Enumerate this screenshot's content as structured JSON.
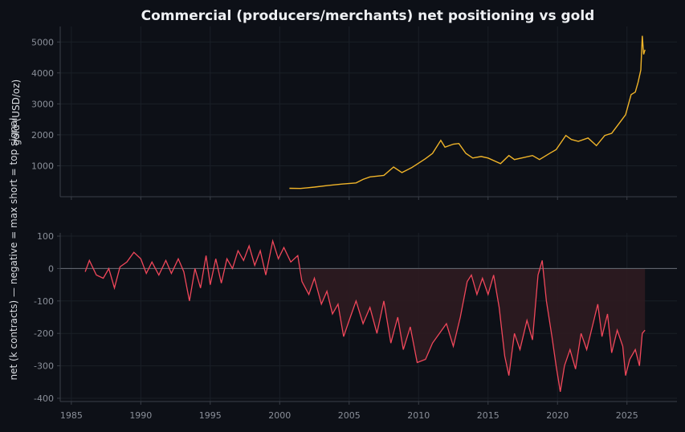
{
  "title": "Commercial (producers/merchants) net positioning vs gold",
  "colors": {
    "background": "#0d1017",
    "gold_line": "#f0b429",
    "net_line": "#f0475a",
    "net_fill": "#2c1a20",
    "zero_line": "#6a6f78",
    "tick_text": "#8a8f99",
    "label_text": "#d8dbe0"
  },
  "chart_data": [
    {
      "type": "line",
      "name": "gold",
      "ylabel": "gold (USD/oz)",
      "xlim": [
        1984.2,
        2028.6
      ],
      "ylim": [
        0,
        5500
      ],
      "yticks": [
        1000,
        2000,
        3000,
        4000,
        5000
      ],
      "grid": true,
      "x_tick_labels_shown": false,
      "series": [
        {
          "color": "#f0b429",
          "points": [
            [
              2000.7,
              272
            ],
            [
              2001.5,
              268
            ],
            [
              2002.5,
              312
            ],
            [
              2003.5,
              365
            ],
            [
              2004.5,
              410
            ],
            [
              2005.5,
              445
            ],
            [
              2006.0,
              560
            ],
            [
              2006.5,
              640
            ],
            [
              2007.5,
              690
            ],
            [
              2008.2,
              960
            ],
            [
              2008.8,
              780
            ],
            [
              2009.5,
              940
            ],
            [
              2010.5,
              1230
            ],
            [
              2011.0,
              1400
            ],
            [
              2011.6,
              1820
            ],
            [
              2011.9,
              1600
            ],
            [
              2012.5,
              1700
            ],
            [
              2012.9,
              1720
            ],
            [
              2013.4,
              1400
            ],
            [
              2013.9,
              1250
            ],
            [
              2014.5,
              1300
            ],
            [
              2015.0,
              1250
            ],
            [
              2015.9,
              1070
            ],
            [
              2016.5,
              1330
            ],
            [
              2016.9,
              1200
            ],
            [
              2017.5,
              1260
            ],
            [
              2018.2,
              1330
            ],
            [
              2018.7,
              1200
            ],
            [
              2019.5,
              1420
            ],
            [
              2019.9,
              1520
            ],
            [
              2020.6,
              1980
            ],
            [
              2021.0,
              1850
            ],
            [
              2021.5,
              1790
            ],
            [
              2022.2,
              1900
            ],
            [
              2022.8,
              1650
            ],
            [
              2023.4,
              1980
            ],
            [
              2023.9,
              2050
            ],
            [
              2024.4,
              2350
            ],
            [
              2024.9,
              2650
            ],
            [
              2025.3,
              3300
            ],
            [
              2025.6,
              3380
            ],
            [
              2025.8,
              3700
            ],
            [
              2026.0,
              4100
            ],
            [
              2026.1,
              5200
            ],
            [
              2026.2,
              4600
            ],
            [
              2026.3,
              4750
            ]
          ]
        }
      ]
    },
    {
      "type": "area",
      "name": "net",
      "ylabel": "net (k contracts) — negative = max short = top signal",
      "xlim": [
        1984.2,
        2028.6
      ],
      "ylim": [
        -410,
        110
      ],
      "yticks": [
        100,
        0,
        -100,
        -200,
        -300,
        -400
      ],
      "xticks": [
        1985,
        1990,
        1995,
        2000,
        2005,
        2010,
        2015,
        2020,
        2025
      ],
      "grid": true,
      "zero_line": true,
      "series": [
        {
          "color": "#f0475a",
          "fill": "#2c1a20",
          "points": [
            [
              1986.0,
              -10
            ],
            [
              1986.3,
              25
            ],
            [
              1986.8,
              -20
            ],
            [
              1987.3,
              -30
            ],
            [
              1987.7,
              0
            ],
            [
              1988.1,
              -60
            ],
            [
              1988.5,
              5
            ],
            [
              1989.0,
              20
            ],
            [
              1989.5,
              50
            ],
            [
              1990.0,
              30
            ],
            [
              1990.4,
              -15
            ],
            [
              1990.8,
              20
            ],
            [
              1991.3,
              -20
            ],
            [
              1991.8,
              25
            ],
            [
              1992.2,
              -15
            ],
            [
              1992.7,
              30
            ],
            [
              1993.1,
              -10
            ],
            [
              1993.5,
              -100
            ],
            [
              1993.9,
              0
            ],
            [
              1994.3,
              -60
            ],
            [
              1994.7,
              40
            ],
            [
              1995.0,
              -50
            ],
            [
              1995.4,
              30
            ],
            [
              1995.8,
              -45
            ],
            [
              1996.2,
              30
            ],
            [
              1996.6,
              0
            ],
            [
              1997.0,
              55
            ],
            [
              1997.4,
              25
            ],
            [
              1997.8,
              70
            ],
            [
              1998.2,
              10
            ],
            [
              1998.6,
              55
            ],
            [
              1999.0,
              -20
            ],
            [
              1999.5,
              85
            ],
            [
              1999.9,
              30
            ],
            [
              2000.3,
              65
            ],
            [
              2000.8,
              20
            ],
            [
              2001.3,
              40
            ],
            [
              2001.6,
              -40
            ],
            [
              2002.1,
              -80
            ],
            [
              2002.5,
              -30
            ],
            [
              2003.0,
              -110
            ],
            [
              2003.4,
              -70
            ],
            [
              2003.8,
              -140
            ],
            [
              2004.2,
              -110
            ],
            [
              2004.6,
              -210
            ],
            [
              2005.0,
              -160
            ],
            [
              2005.5,
              -100
            ],
            [
              2006.0,
              -170
            ],
            [
              2006.5,
              -120
            ],
            [
              2007.0,
              -200
            ],
            [
              2007.5,
              -100
            ],
            [
              2008.0,
              -230
            ],
            [
              2008.5,
              -150
            ],
            [
              2008.9,
              -250
            ],
            [
              2009.4,
              -180
            ],
            [
              2009.9,
              -290
            ],
            [
              2010.5,
              -280
            ],
            [
              2011.0,
              -230
            ],
            [
              2011.5,
              -200
            ],
            [
              2012.0,
              -170
            ],
            [
              2012.5,
              -240
            ],
            [
              2013.0,
              -150
            ],
            [
              2013.5,
              -40
            ],
            [
              2013.8,
              -20
            ],
            [
              2014.2,
              -80
            ],
            [
              2014.6,
              -30
            ],
            [
              2015.0,
              -80
            ],
            [
              2015.4,
              -20
            ],
            [
              2015.8,
              -120
            ],
            [
              2016.2,
              -270
            ],
            [
              2016.5,
              -330
            ],
            [
              2016.9,
              -200
            ],
            [
              2017.3,
              -250
            ],
            [
              2017.8,
              -160
            ],
            [
              2018.2,
              -220
            ],
            [
              2018.6,
              -20
            ],
            [
              2018.9,
              25
            ],
            [
              2019.2,
              -100
            ],
            [
              2019.6,
              -210
            ],
            [
              2019.9,
              -300
            ],
            [
              2020.2,
              -380
            ],
            [
              2020.5,
              -300
            ],
            [
              2020.9,
              -250
            ],
            [
              2021.3,
              -310
            ],
            [
              2021.7,
              -200
            ],
            [
              2022.1,
              -250
            ],
            [
              2022.5,
              -180
            ],
            [
              2022.9,
              -110
            ],
            [
              2023.2,
              -210
            ],
            [
              2023.6,
              -140
            ],
            [
              2023.9,
              -260
            ],
            [
              2024.3,
              -190
            ],
            [
              2024.7,
              -240
            ],
            [
              2024.9,
              -330
            ],
            [
              2025.2,
              -280
            ],
            [
              2025.6,
              -250
            ],
            [
              2025.9,
              -300
            ],
            [
              2026.1,
              -200
            ],
            [
              2026.3,
              -190
            ]
          ]
        }
      ]
    }
  ]
}
